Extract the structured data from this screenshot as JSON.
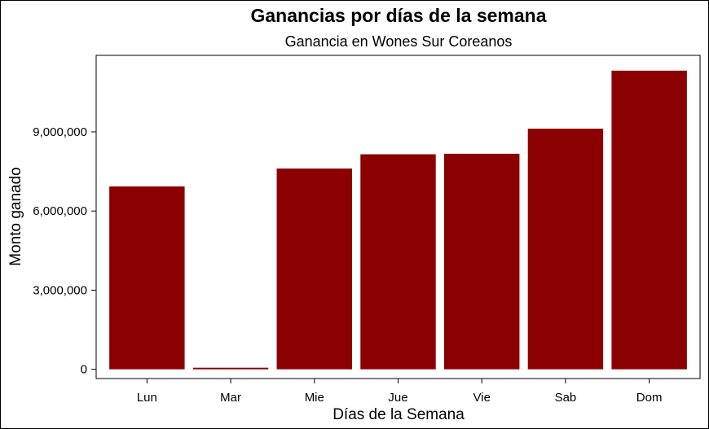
{
  "chart_data": {
    "type": "bar",
    "title": "Ganancias por días de la semana",
    "subtitle": "Ganancia en Wones Sur Coreanos",
    "xlabel": "Días de la Semana",
    "ylabel": "Monto ganado",
    "categories": [
      "Lun",
      "Mar",
      "Mie",
      "Jue",
      "Vie",
      "Sab",
      "Dom"
    ],
    "values": [
      6930000,
      60000,
      7610000,
      8150000,
      8170000,
      9120000,
      11320000
    ],
    "yticks": [
      0,
      3000000,
      6000000,
      9000000
    ],
    "ytick_labels": [
      "0",
      "3,000,000",
      "6,000,000",
      "9,000,000"
    ],
    "ylim": [
      -350000,
      11900000
    ],
    "bar_color": "#8b0000",
    "grid": false,
    "legend": "none"
  }
}
